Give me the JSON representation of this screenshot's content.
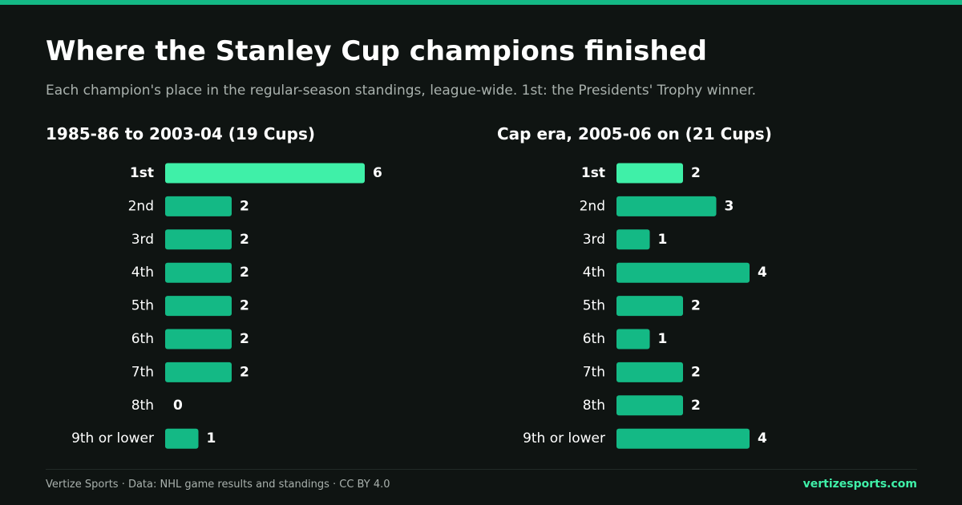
{
  "header": {
    "title": "Where the Stanley Cup champions finished",
    "subtitle": "Each champion's place in the regular-season standings, league-wide. 1st: the Presidents' Trophy winner."
  },
  "colors": {
    "background": "#0f1412",
    "accent": "#14b985",
    "highlight": "#3ff0a8",
    "muted_text": "#a9b1ad"
  },
  "chart_data": [
    {
      "type": "bar",
      "orientation": "horizontal",
      "title": "1985-86 to 2003-04 (19 Cups)",
      "categories": [
        "1st",
        "2nd",
        "3rd",
        "4th",
        "5th",
        "6th",
        "7th",
        "8th",
        "9th or lower"
      ],
      "values": [
        6,
        2,
        2,
        2,
        2,
        2,
        2,
        0,
        1
      ],
      "highlight_category": "1st",
      "xlim": [
        0,
        6
      ]
    },
    {
      "type": "bar",
      "orientation": "horizontal",
      "title": "Cap era, 2005-06 on (21 Cups)",
      "categories": [
        "1st",
        "2nd",
        "3rd",
        "4th",
        "5th",
        "6th",
        "7th",
        "8th",
        "9th or lower"
      ],
      "values": [
        2,
        3,
        1,
        4,
        2,
        1,
        2,
        2,
        4
      ],
      "highlight_category": "1st",
      "xlim": [
        0,
        6
      ]
    }
  ],
  "footer": {
    "credit": "Vertize Sports · Data: NHL game results and standings · CC BY 4.0",
    "site": "vertizesports.com"
  }
}
